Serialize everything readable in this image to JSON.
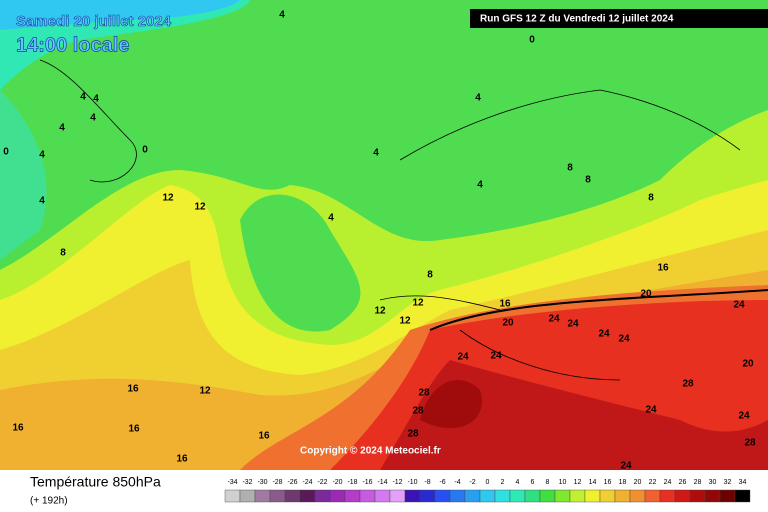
{
  "header": {
    "date": "Samedi 20 juillet 2024",
    "time": "14:00 locale",
    "run": "Run GFS 12 Z du Vendredi 12 juillet 2024"
  },
  "copyright": "Copyright © 2024 Meteociel.fr",
  "footer": {
    "title": "Température 850hPa",
    "lead": "(+ 192h)"
  },
  "legend": [
    {
      "value": -34,
      "color": "#d0d0d0"
    },
    {
      "value": -32,
      "color": "#b0b0b0"
    },
    {
      "value": -30,
      "color": "#a07aa0"
    },
    {
      "value": -28,
      "color": "#8a5a8a"
    },
    {
      "value": -26,
      "color": "#6e3a6e"
    },
    {
      "value": -24,
      "color": "#5a1a5a"
    },
    {
      "value": -22,
      "color": "#7a2a9a"
    },
    {
      "value": -20,
      "color": "#9a2ab4"
    },
    {
      "value": -18,
      "color": "#b43cc8"
    },
    {
      "value": -16,
      "color": "#c85ae0"
    },
    {
      "value": -14,
      "color": "#d27af0"
    },
    {
      "value": -12,
      "color": "#e4a0f8"
    },
    {
      "value": -10,
      "color": "#3a14b4"
    },
    {
      "value": -8,
      "color": "#2a2ad2"
    },
    {
      "value": -6,
      "color": "#2850f0"
    },
    {
      "value": -4,
      "color": "#2878f0"
    },
    {
      "value": -2,
      "color": "#28a0f0"
    },
    {
      "value": 0,
      "color": "#30c8f0"
    },
    {
      "value": 2,
      "color": "#30e0e0"
    },
    {
      "value": 4,
      "color": "#30e8b4"
    },
    {
      "value": 6,
      "color": "#30e080"
    },
    {
      "value": 8,
      "color": "#40e040"
    },
    {
      "value": 10,
      "color": "#80e830"
    },
    {
      "value": 12,
      "color": "#c0f030"
    },
    {
      "value": 14,
      "color": "#f0f030"
    },
    {
      "value": 16,
      "color": "#f0d030"
    },
    {
      "value": 18,
      "color": "#f0b030"
    },
    {
      "value": 20,
      "color": "#f09030"
    },
    {
      "value": 22,
      "color": "#f06030"
    },
    {
      "value": 24,
      "color": "#e83020"
    },
    {
      "value": 26,
      "color": "#d01818"
    },
    {
      "value": 28,
      "color": "#b00c0c"
    },
    {
      "value": 30,
      "color": "#900808"
    },
    {
      "value": 32,
      "color": "#700000"
    },
    {
      "value": 34,
      "color": "#000000"
    }
  ],
  "contour_labels": [
    4,
    0,
    4,
    4,
    4,
    4,
    4,
    0,
    4,
    8,
    12,
    12,
    4,
    4,
    4,
    4,
    8,
    8,
    8,
    8,
    12,
    12,
    12,
    16,
    16,
    20,
    20,
    24,
    24,
    24,
    24,
    24,
    24,
    24,
    28,
    28,
    28,
    28,
    24,
    24,
    28,
    20,
    16,
    12,
    16,
    16,
    16,
    16,
    24,
    0
  ]
}
